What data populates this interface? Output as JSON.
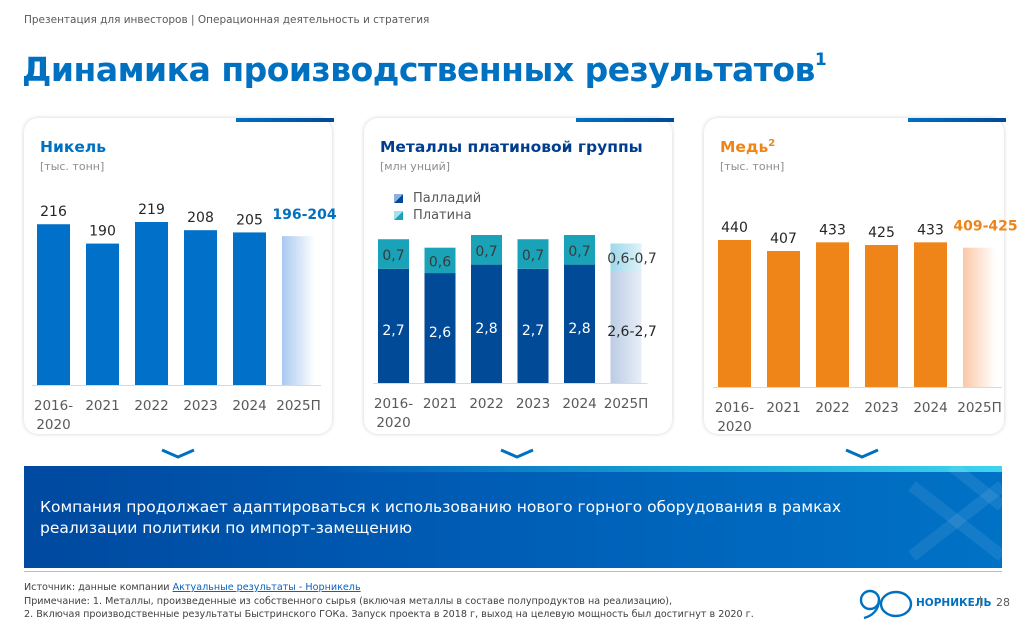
{
  "header": {
    "breadcrumb": "Презентация для инвесторов | Операционная деятельность и стратегия",
    "title": "Динамика производственных результатов",
    "title_note": "1"
  },
  "chart_data": [
    {
      "type": "bar",
      "title": "Никель",
      "title_note": "",
      "unit": "[тыс. тонн]",
      "categories": [
        "2016-2020",
        "2021",
        "2022",
        "2023",
        "2024",
        "2025П"
      ],
      "values": [
        216,
        190,
        219,
        208,
        205,
        200
      ],
      "labels": [
        "216",
        "190",
        "219",
        "208",
        "205",
        "196-204"
      ],
      "forecast_range": [
        196,
        204
      ],
      "color": "#0070c8",
      "forecast_color": "#a9c8f0",
      "highlight_label_color": "#0070c0",
      "title_color": "#0070c0",
      "ylim": [
        0,
        219
      ]
    },
    {
      "type": "bar",
      "stacked": true,
      "title": "Металлы платиновой группы",
      "title_note": "",
      "unit": "[млн унций]",
      "categories": [
        "2016-2020",
        "2021",
        "2022",
        "2023",
        "2024",
        "2025П"
      ],
      "series": [
        {
          "name": "Палладий",
          "values": [
            2.7,
            2.6,
            2.8,
            2.7,
            2.8,
            2.65
          ],
          "labels": [
            "2,7",
            "2,6",
            "2,8",
            "2,7",
            "2,8",
            "2,6-2,7"
          ],
          "color": "#004a98"
        },
        {
          "name": "Платина",
          "values": [
            0.7,
            0.6,
            0.7,
            0.7,
            0.7,
            0.65
          ],
          "labels": [
            "0,7",
            "0,6",
            "0,7",
            "0,7",
            "0,7",
            "0,6-0,7"
          ],
          "color": "#1aa3b8"
        }
      ],
      "title_color": "#003d8f",
      "ylim": [
        0,
        3.5
      ]
    },
    {
      "type": "bar",
      "title": "Медь",
      "title_note": "2",
      "unit": "[тыс. тонн]",
      "categories": [
        "2016-2020",
        "2021",
        "2022",
        "2023",
        "2024",
        "2025П"
      ],
      "values": [
        440,
        407,
        433,
        425,
        433,
        417
      ],
      "labels": [
        "440",
        "407",
        "433",
        "425",
        "433",
        "409-425"
      ],
      "forecast_range": [
        409,
        425
      ],
      "color": "#ef8418",
      "forecast_color": "#fbc8a8",
      "highlight_label_color": "#ef8418",
      "title_color": "#ef8418",
      "ylim": [
        0,
        440
      ]
    }
  ],
  "banner": {
    "text_line1": "Компания продолжает адаптироваться к использованию нового горного оборудования в рамках",
    "text_line2": "реализации политики по импорт-замещению"
  },
  "footer": {
    "source_prefix": "Источник: данные компании ",
    "source_link": "Актуальные результаты - Норникель",
    "note1": "Примечание: 1. Металлы, произведенные из собственного сырья (включая металлы в составе полупродуктов на реализацию),",
    "note2": "2. Включая производственные результаты Быстринского ГОКа. Запуск проекта в 2018 г, выход на целевую мощность был достигнут в 2020 г.",
    "brand": "НОРНИКЕЛЬ",
    "page_number": "28"
  }
}
